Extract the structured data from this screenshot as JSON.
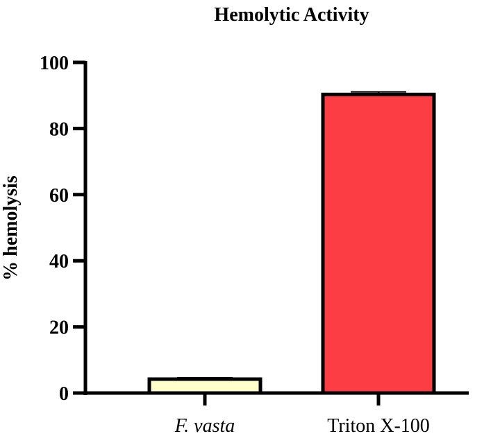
{
  "chart_data": {
    "type": "bar",
    "title": "Hemolytic Activity",
    "ylabel": "% hemolysis",
    "xlabel": "",
    "ylim": [
      0,
      100
    ],
    "yticks": [
      0,
      20,
      40,
      60,
      80,
      100
    ],
    "categories": [
      "F. vasta",
      "Triton X-100"
    ],
    "category_italic": [
      true,
      false
    ],
    "values": [
      4.2,
      90.3
    ],
    "error": [
      0.4,
      0.8
    ],
    "colors": [
      "#ffffcc",
      "#fc3d44"
    ],
    "edge_color": "#000000",
    "grid": false,
    "legend": "none"
  }
}
